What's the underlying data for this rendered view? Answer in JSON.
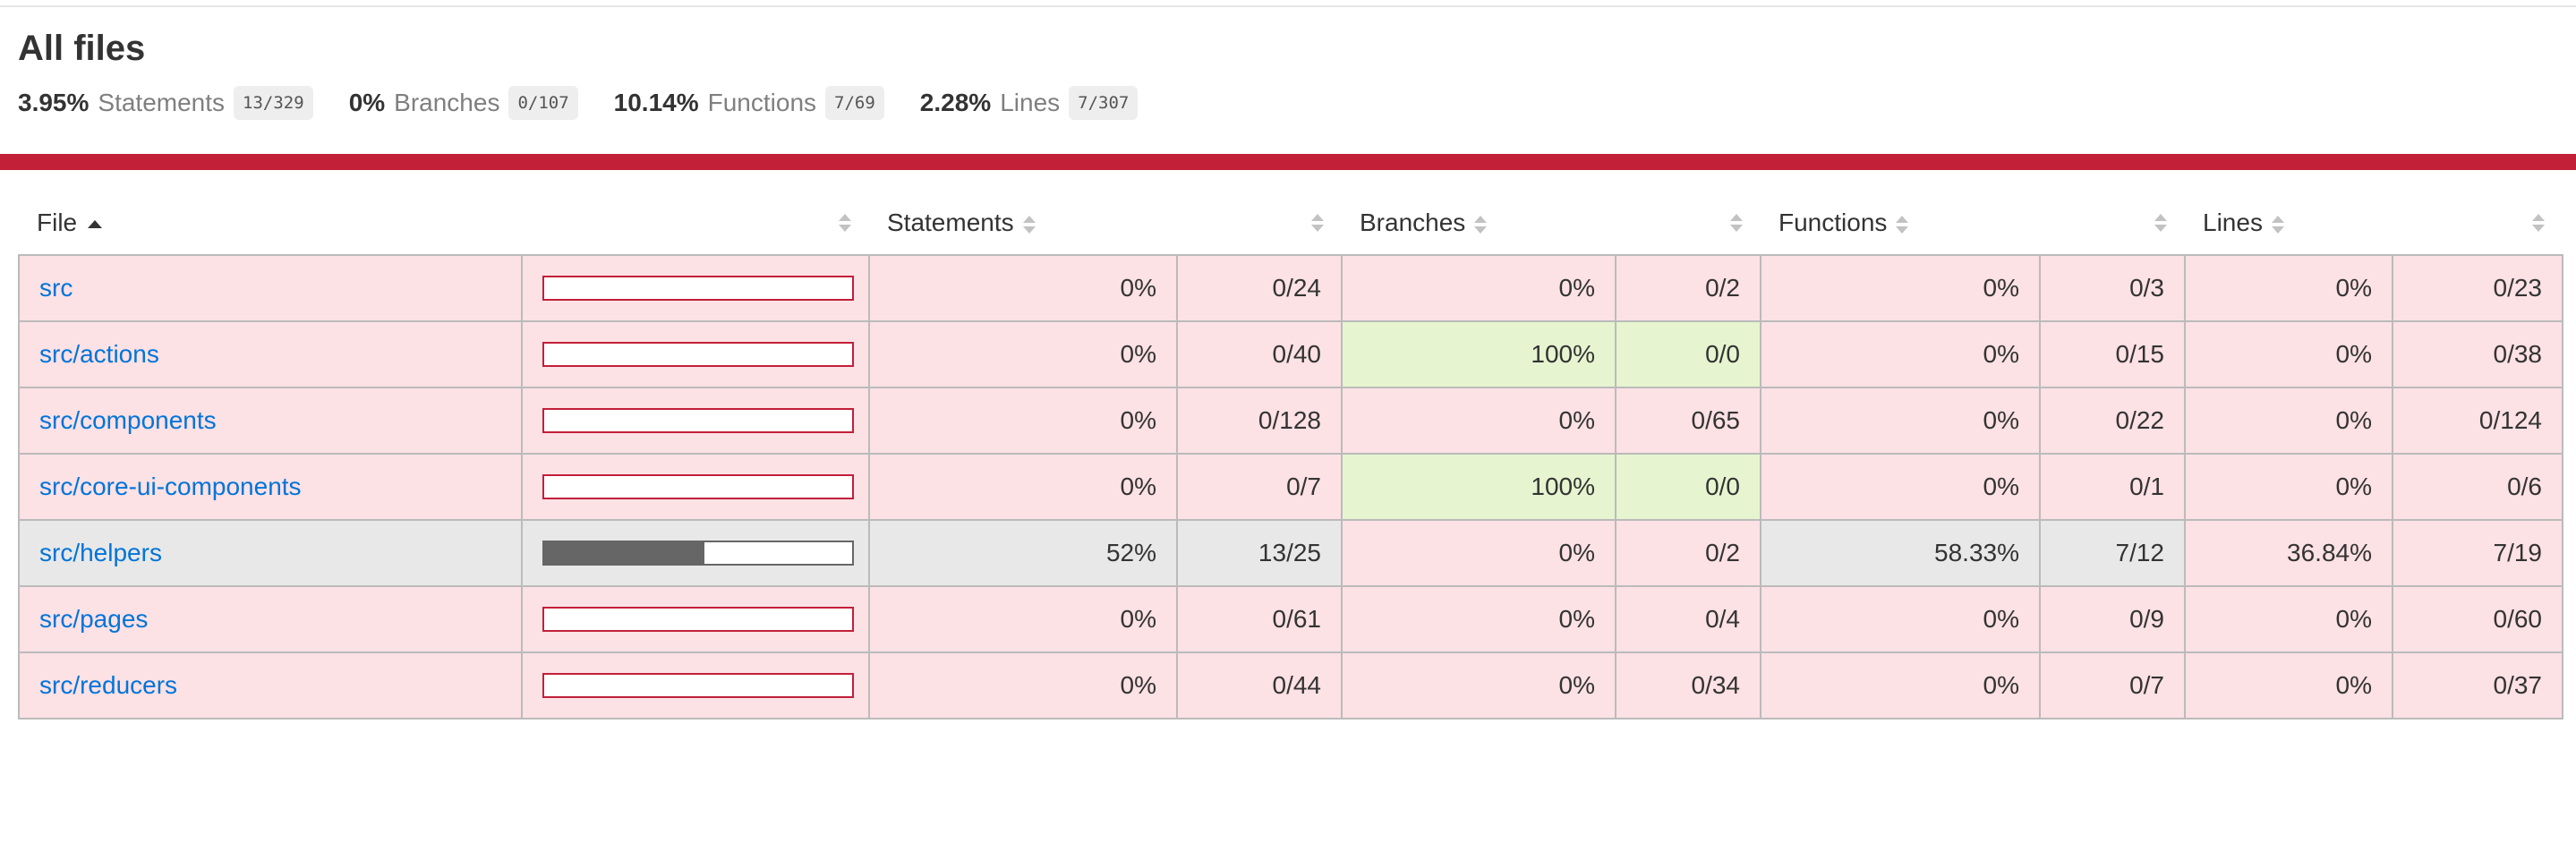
{
  "title": "All files",
  "summary": [
    {
      "pct": "3.95%",
      "label": "Statements",
      "fraction": "13/329"
    },
    {
      "pct": "0%",
      "label": "Branches",
      "fraction": "0/107"
    },
    {
      "pct": "10.14%",
      "label": "Functions",
      "fraction": "7/69"
    },
    {
      "pct": "2.28%",
      "label": "Lines",
      "fraction": "7/307"
    }
  ],
  "colors": {
    "low": "#c21f39",
    "low_bg": "#fce1e5",
    "high_bg": "#e6f5d0",
    "medium_bg": "#e8e8e8",
    "link": "#0074d9"
  },
  "table": {
    "headers": {
      "file": "File",
      "statements": "Statements",
      "branches": "Branches",
      "functions": "Functions",
      "lines": "Lines"
    },
    "rows": [
      {
        "file": "src",
        "fill": 0,
        "status": "low",
        "s_pct": "0%",
        "s_frac": "0/24",
        "b_pct": "0%",
        "b_frac": "0/2",
        "b_status": "low",
        "f_pct": "0%",
        "f_frac": "0/3",
        "f_status": "low",
        "l_pct": "0%",
        "l_frac": "0/23",
        "l_status": "low"
      },
      {
        "file": "src/actions",
        "fill": 0,
        "status": "low",
        "s_pct": "0%",
        "s_frac": "0/40",
        "b_pct": "100%",
        "b_frac": "0/0",
        "b_status": "high",
        "f_pct": "0%",
        "f_frac": "0/15",
        "f_status": "low",
        "l_pct": "0%",
        "l_frac": "0/38",
        "l_status": "low"
      },
      {
        "file": "src/components",
        "fill": 0,
        "status": "low",
        "s_pct": "0%",
        "s_frac": "0/128",
        "b_pct": "0%",
        "b_frac": "0/65",
        "b_status": "low",
        "f_pct": "0%",
        "f_frac": "0/22",
        "f_status": "low",
        "l_pct": "0%",
        "l_frac": "0/124",
        "l_status": "low"
      },
      {
        "file": "src/core-ui-components",
        "fill": 0,
        "status": "low",
        "s_pct": "0%",
        "s_frac": "0/7",
        "b_pct": "100%",
        "b_frac": "0/0",
        "b_status": "high",
        "f_pct": "0%",
        "f_frac": "0/1",
        "f_status": "low",
        "l_pct": "0%",
        "l_frac": "0/6",
        "l_status": "low"
      },
      {
        "file": "src/helpers",
        "fill": 52,
        "status": "medium",
        "s_pct": "52%",
        "s_frac": "13/25",
        "b_pct": "0%",
        "b_frac": "0/2",
        "b_status": "low",
        "f_pct": "58.33%",
        "f_frac": "7/12",
        "f_status": "medium",
        "l_pct": "36.84%",
        "l_frac": "7/19",
        "l_status": "low"
      },
      {
        "file": "src/pages",
        "fill": 0,
        "status": "low",
        "s_pct": "0%",
        "s_frac": "0/61",
        "b_pct": "0%",
        "b_frac": "0/4",
        "b_status": "low",
        "f_pct": "0%",
        "f_frac": "0/9",
        "f_status": "low",
        "l_pct": "0%",
        "l_frac": "0/60",
        "l_status": "low"
      },
      {
        "file": "src/reducers",
        "fill": 0,
        "status": "low",
        "s_pct": "0%",
        "s_frac": "0/44",
        "b_pct": "0%",
        "b_frac": "0/34",
        "b_status": "low",
        "f_pct": "0%",
        "f_frac": "0/7",
        "f_status": "low",
        "l_pct": "0%",
        "l_frac": "0/37",
        "l_status": "low"
      }
    ]
  }
}
